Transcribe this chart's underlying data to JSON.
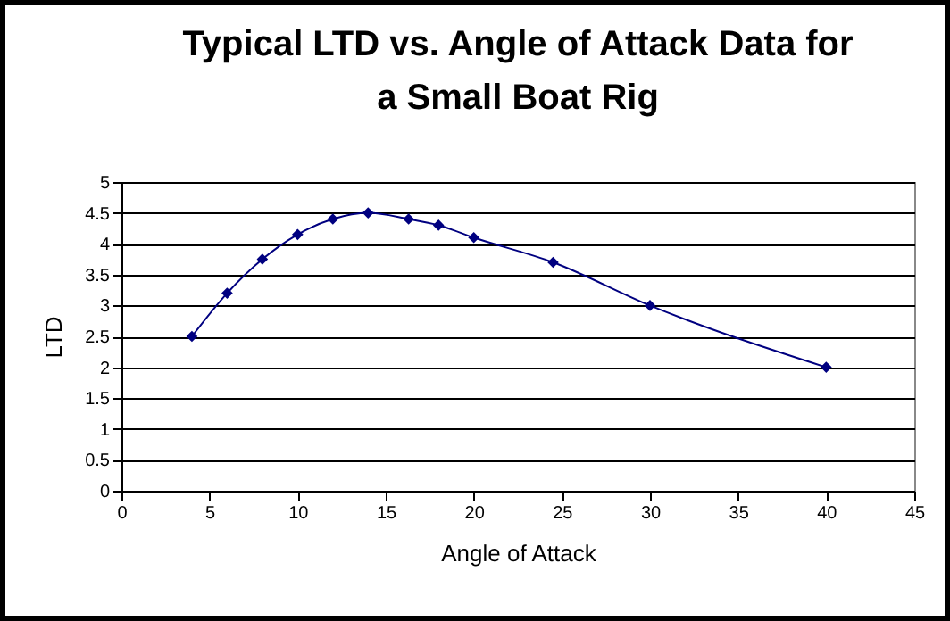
{
  "chart_data": {
    "type": "line",
    "title": "Typical  LTD vs. Angle of Attack Data for a Small Boat Rig",
    "xlabel": "Angle of Attack",
    "ylabel": "LTD",
    "x": [
      4,
      6,
      8,
      10,
      12,
      14,
      16.3,
      18,
      20,
      24.5,
      30,
      40
    ],
    "series": [
      {
        "color": "#000080",
        "values": [
          2.5,
          3.2,
          3.75,
          4.15,
          4.4,
          4.5,
          4.4,
          4.3,
          4.1,
          3.7,
          3,
          2
        ]
      }
    ],
    "xlim": [
      0,
      45
    ],
    "xticks": [
      0,
      5,
      10,
      15,
      20,
      25,
      30,
      35,
      40,
      45
    ],
    "ylim": [
      0,
      5
    ],
    "yticks": [
      0,
      0.5,
      1,
      1.5,
      2,
      2.5,
      3,
      3.5,
      4,
      4.5,
      5
    ],
    "grid": "y",
    "marker": "diamond",
    "line_style": "solid",
    "legend": false
  }
}
